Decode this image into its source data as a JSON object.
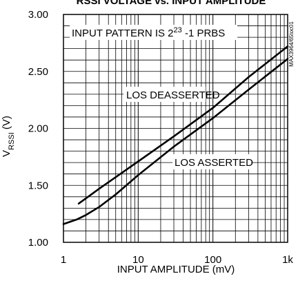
{
  "chart_data": {
    "type": "line",
    "title": "RSSI VOLTAGE vs. INPUT AMPLITUDE",
    "xlabel": "INPUT AMPLITUDE (mV)",
    "ylabel": {
      "main": "V",
      "subscript": "RSSI",
      "suffix": " (V)"
    },
    "x_scale": "log",
    "xlim": [
      1,
      1000
    ],
    "ylim": [
      1.0,
      3.0
    ],
    "grid": true,
    "x_ticks": [
      {
        "value": 1,
        "label": "1"
      },
      {
        "value": 10,
        "label": "10"
      },
      {
        "value": 100,
        "label": "100"
      },
      {
        "value": 1000,
        "label": "1k"
      }
    ],
    "y_ticks": [
      {
        "value": 1.0,
        "label": "1.00"
      },
      {
        "value": 1.5,
        "label": "1.50"
      },
      {
        "value": 2.0,
        "label": "2.00"
      },
      {
        "value": 2.5,
        "label": "2.50"
      },
      {
        "value": 3.0,
        "label": "3.00"
      }
    ],
    "series": [
      {
        "name": "LOS DEASSERTED",
        "points": [
          [
            1.6,
            1.34
          ],
          [
            3,
            1.47
          ],
          [
            10,
            1.71
          ],
          [
            30,
            1.93
          ],
          [
            100,
            2.18
          ],
          [
            300,
            2.45
          ],
          [
            1000,
            2.72
          ]
        ]
      },
      {
        "name": "LOS ASSERTED",
        "points": [
          [
            1,
            1.16
          ],
          [
            1.5,
            1.2
          ],
          [
            2,
            1.24
          ],
          [
            3,
            1.31
          ],
          [
            5,
            1.42
          ],
          [
            10,
            1.59
          ],
          [
            30,
            1.84
          ],
          [
            100,
            2.09
          ],
          [
            300,
            2.34
          ],
          [
            1000,
            2.61
          ]
        ]
      }
    ],
    "annotations": {
      "input_pattern": {
        "prefix": "INPUT PATTERN IS 2",
        "superscript": "23",
        "suffix": " -1 PRBS"
      },
      "side_id": "MAX3964/65toc01"
    },
    "colors": {
      "line": "#000000",
      "grid": "#000000",
      "background": "#ffffff"
    }
  }
}
